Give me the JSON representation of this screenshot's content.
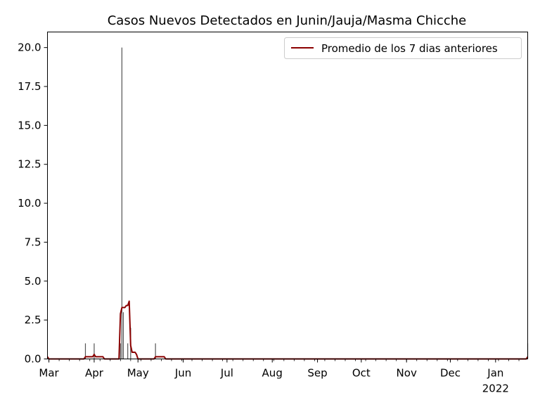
{
  "chart_data": {
    "type": "bar",
    "title": "Casos Nuevos Detectados en Junin/Jauja/Masma Chicche",
    "xlabel": "",
    "ylabel": "",
    "ylim": [
      0,
      21
    ],
    "xlim": [
      "2021-02-28",
      "2022-01-23"
    ],
    "grid": false,
    "legend_position": "top-right",
    "x_ticks": [
      {
        "date": "2021-03-01",
        "label": "Mar"
      },
      {
        "date": "2021-04-01",
        "label": "Apr"
      },
      {
        "date": "2021-05-01",
        "label": "May"
      },
      {
        "date": "2021-06-01",
        "label": "Jun"
      },
      {
        "date": "2021-07-01",
        "label": "Jul"
      },
      {
        "date": "2021-08-01",
        "label": "Aug"
      },
      {
        "date": "2021-09-01",
        "label": "Sep"
      },
      {
        "date": "2021-10-01",
        "label": "Oct"
      },
      {
        "date": "2021-11-01",
        "label": "Nov"
      },
      {
        "date": "2021-12-01",
        "label": "Dec"
      },
      {
        "date": "2022-01-01",
        "label": "Jan"
      }
    ],
    "x_sublabel": "2022",
    "y_ticks": [
      "0.0",
      "2.5",
      "5.0",
      "7.5",
      "10.0",
      "12.5",
      "15.0",
      "17.5",
      "20.0"
    ],
    "bars": {
      "color": "#555555",
      "points": [
        {
          "date": "2021-03-26",
          "value": 1
        },
        {
          "date": "2021-04-01",
          "value": 1
        },
        {
          "date": "2021-04-19",
          "value": 1
        },
        {
          "date": "2021-04-20",
          "value": 20
        },
        {
          "date": "2021-04-21",
          "value": 3
        },
        {
          "date": "2021-04-24",
          "value": 1
        },
        {
          "date": "2021-04-26",
          "value": 2
        },
        {
          "date": "2021-05-13",
          "value": 1
        },
        {
          "date": "2022-01-23",
          "value": 1
        }
      ]
    },
    "series": [
      {
        "name": "Promedio de los 7 dias anteriores",
        "color": "#8b0000",
        "points": [
          {
            "date": "2021-02-28",
            "value": 0.14
          },
          {
            "date": "2021-03-01",
            "value": 0.0
          },
          {
            "date": "2021-03-25",
            "value": 0.0
          },
          {
            "date": "2021-03-26",
            "value": 0.14
          },
          {
            "date": "2021-03-31",
            "value": 0.14
          },
          {
            "date": "2021-04-01",
            "value": 0.29
          },
          {
            "date": "2021-04-02",
            "value": 0.14
          },
          {
            "date": "2021-04-07",
            "value": 0.14
          },
          {
            "date": "2021-04-08",
            "value": 0.0
          },
          {
            "date": "2021-04-18",
            "value": 0.0
          },
          {
            "date": "2021-04-19",
            "value": 2.9
          },
          {
            "date": "2021-04-20",
            "value": 3.3
          },
          {
            "date": "2021-04-22",
            "value": 3.3
          },
          {
            "date": "2021-04-23",
            "value": 3.43
          },
          {
            "date": "2021-04-24",
            "value": 3.43
          },
          {
            "date": "2021-04-25",
            "value": 3.71
          },
          {
            "date": "2021-04-26",
            "value": 0.86
          },
          {
            "date": "2021-04-27",
            "value": 0.43
          },
          {
            "date": "2021-04-29",
            "value": 0.43
          },
          {
            "date": "2021-04-30",
            "value": 0.29
          },
          {
            "date": "2021-05-01",
            "value": 0.0
          },
          {
            "date": "2021-05-12",
            "value": 0.0
          },
          {
            "date": "2021-05-13",
            "value": 0.14
          },
          {
            "date": "2021-05-19",
            "value": 0.14
          },
          {
            "date": "2021-05-20",
            "value": 0.0
          },
          {
            "date": "2022-01-22",
            "value": 0.0
          },
          {
            "date": "2022-01-23",
            "value": 0.14
          }
        ]
      }
    ]
  }
}
